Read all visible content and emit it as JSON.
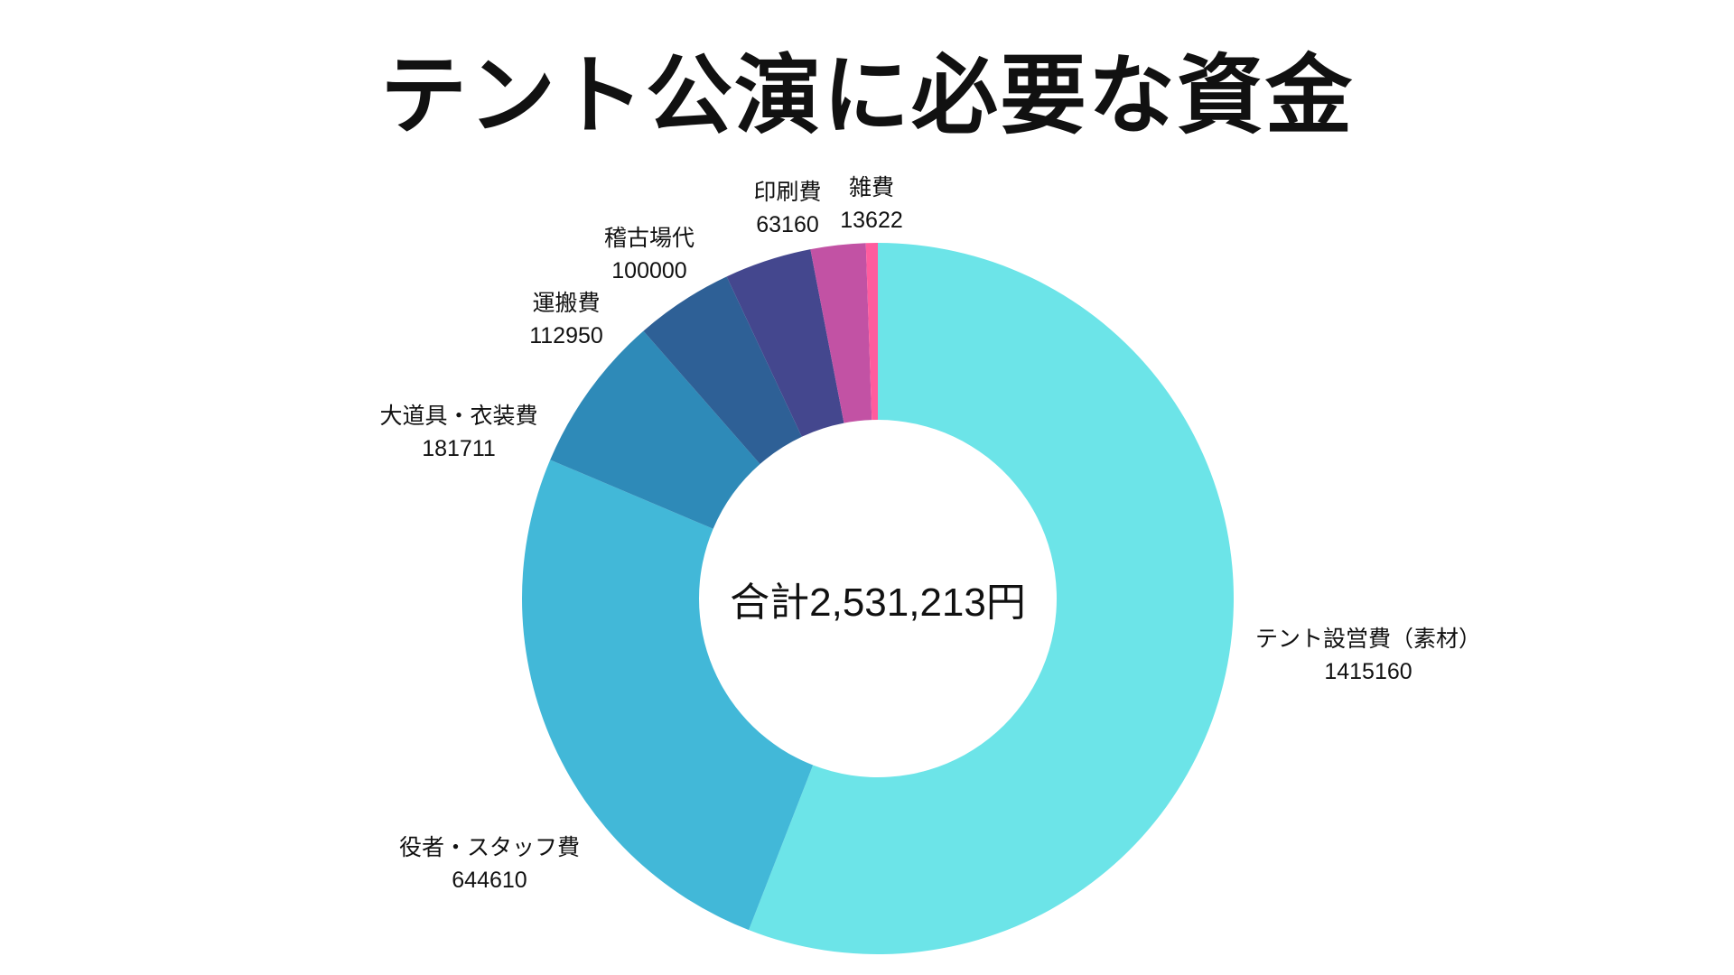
{
  "chart_data": {
    "type": "pie",
    "style": "donut",
    "title": "テント公演に必要な資金",
    "center_label": "合計2,531,213円",
    "slices": [
      {
        "label": "テント設営費（素材）",
        "value": 1415160,
        "color": "#6ce4e8"
      },
      {
        "label": "役者・スタッフ費",
        "value": 644610,
        "color": "#42b8d8"
      },
      {
        "label": "大道具・衣装費",
        "value": 181711,
        "color": "#2e8ab8"
      },
      {
        "label": "運搬費",
        "value": 112950,
        "color": "#2e6096"
      },
      {
        "label": "稽古場代",
        "value": 100000,
        "color": "#44478e"
      },
      {
        "label": "印刷費",
        "value": 63160,
        "color": "#c252a4"
      },
      {
        "label": "雑費",
        "value": 13622,
        "color": "#ff5c9e"
      }
    ],
    "direction": "counterclockwise-from-top-for-small-slices"
  }
}
